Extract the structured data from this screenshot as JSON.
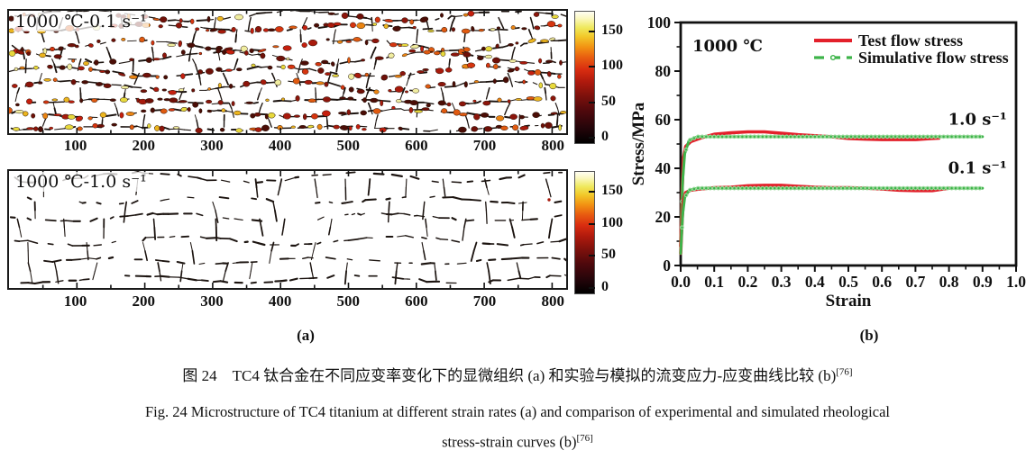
{
  "figure": {
    "micro_panels": [
      {
        "label": "1000 ℃-0.1 s⁻¹",
        "x_ticks": [
          100,
          200,
          300,
          400,
          500,
          600,
          700,
          800
        ],
        "colorbar_ticks": [
          150,
          100,
          50,
          0
        ],
        "style": "speckled"
      },
      {
        "label": "1000 ℃-1.0 s⁻¹",
        "x_ticks": [
          100,
          200,
          300,
          400,
          500,
          600,
          700,
          800
        ],
        "colorbar_ticks": [
          150,
          100,
          50,
          0
        ],
        "style": "plain"
      }
    ],
    "colors": {
      "test": "#e3202b",
      "sim": "#3eb44a",
      "sim_marker": "#9adb9c",
      "axis": "#111111"
    }
  },
  "chart_data": {
    "type": "line",
    "xlabel": "Strain",
    "ylabel": "Stress/MPa",
    "xlim": [
      0.0,
      1.0
    ],
    "ylim": [
      0,
      100
    ],
    "x_ticks": [
      0.0,
      0.1,
      0.2,
      0.3,
      0.4,
      0.5,
      0.6,
      0.7,
      0.8,
      0.9,
      1.0
    ],
    "y_ticks": [
      0,
      20,
      40,
      60,
      80,
      100
    ],
    "annotation": "1000 ℃",
    "legend": [
      {
        "label": "Test flow stress",
        "color": "#e3202b",
        "style": "solid"
      },
      {
        "label": "Simulative flow stress",
        "color": "#3eb44a",
        "style": "dash-dot-circle"
      }
    ],
    "curve_labels": [
      {
        "text": "1.0 s⁻¹",
        "x": 0.885,
        "y": 58
      },
      {
        "text": "0.1 s⁻¹",
        "x": 0.885,
        "y": 38
      }
    ],
    "series": [
      {
        "name": "Test flow stress (1.0 s⁻¹)",
        "type": "test",
        "x": [
          0.0,
          0.004,
          0.008,
          0.015,
          0.03,
          0.06,
          0.1,
          0.15,
          0.2,
          0.25,
          0.3,
          0.35,
          0.4,
          0.45,
          0.5,
          0.55,
          0.6,
          0.65,
          0.7,
          0.74,
          0.77
        ],
        "y": [
          8,
          30,
          44,
          49,
          51,
          52.5,
          54,
          54.6,
          55,
          55,
          54.4,
          53.8,
          53.4,
          53,
          52.3,
          52,
          51.8,
          51.8,
          51.8,
          52.2,
          52.4
        ]
      },
      {
        "name": "Simulative flow stress (1.0 s⁻¹)",
        "type": "sim",
        "x": [
          0.0,
          0.003,
          0.006,
          0.012,
          0.025,
          0.05,
          0.9
        ],
        "y": [
          8,
          22,
          35,
          46,
          51.5,
          53,
          53
        ]
      },
      {
        "name": "Test flow stress (0.1 s⁻¹)",
        "type": "test",
        "x": [
          0.0,
          0.004,
          0.008,
          0.015,
          0.03,
          0.06,
          0.1,
          0.15,
          0.2,
          0.25,
          0.3,
          0.35,
          0.4,
          0.45,
          0.5,
          0.55,
          0.6,
          0.65,
          0.7,
          0.75,
          0.8
        ],
        "y": [
          5,
          18,
          27,
          30,
          31,
          31.5,
          32,
          32.2,
          32.8,
          33,
          33,
          32.6,
          32.2,
          32,
          32,
          31.8,
          31.5,
          31,
          30.8,
          30.8,
          31.8
        ]
      },
      {
        "name": "Simulative flow stress (0.1 s⁻¹)",
        "type": "sim",
        "x": [
          0.0,
          0.003,
          0.006,
          0.012,
          0.025,
          0.05,
          0.9
        ],
        "y": [
          5,
          13,
          21,
          28,
          31,
          31.8,
          31.8
        ]
      }
    ]
  },
  "captions": {
    "panel_a": "(a)",
    "panel_b": "(b)",
    "chinese": "图 24　TC4 钛合金在不同应变率变化下的显微组织 (a) 和实验与模拟的流变应力-应变曲线比较 (b)",
    "ref_sup": "[76]",
    "english_line1": "Fig. 24   Microstructure of TC4 titanium at different strain rates (a) and comparison of experimental and simulated rheological",
    "english_line2": "stress-strain curves (b)"
  }
}
